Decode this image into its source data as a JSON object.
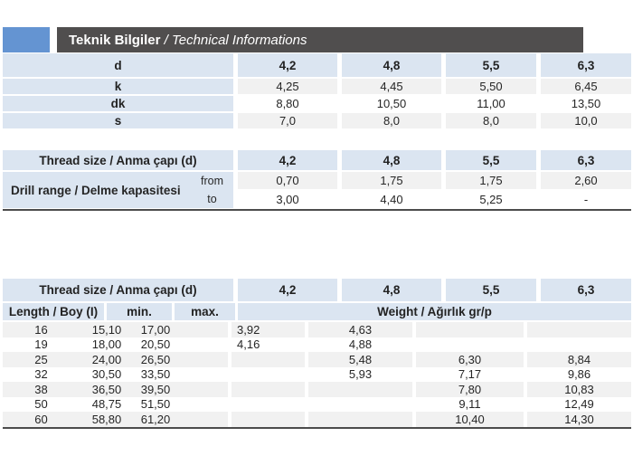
{
  "header": {
    "title_tr": "Teknik Bilgiler",
    "separator": " / ",
    "title_en": "Technical Informations"
  },
  "colors": {
    "accent_blue": "#6494d2",
    "header_bar_gray": "#504e4e",
    "cell_blue": "#dbe5f1",
    "stripe_gray": "#f1f1f1",
    "rule_dark": "#4c4c4c"
  },
  "dimensions_table": {
    "header_label": "d",
    "sizes": [
      "4,2",
      "4,8",
      "5,5",
      "6,3"
    ],
    "rows": [
      {
        "label": "k",
        "values": [
          "4,25",
          "4,45",
          "5,50",
          "6,45"
        ]
      },
      {
        "label": "dk",
        "values": [
          "8,80",
          "10,50",
          "11,00",
          "13,50"
        ]
      },
      {
        "label": "s",
        "values": [
          "7,0",
          "8,0",
          "8,0",
          "10,0"
        ]
      }
    ]
  },
  "drill_table": {
    "header_label": "Thread size / Anma çapı (d)",
    "sizes": [
      "4,2",
      "4,8",
      "5,5",
      "6,3"
    ],
    "row_label": "Drill range / Delme kapasitesi",
    "from_label": "from",
    "to_label": "to",
    "from_values": [
      "0,70",
      "1,75",
      "1,75",
      "2,60"
    ],
    "to_values": [
      "3,00",
      "4,40",
      "5,25",
      "-"
    ]
  },
  "weight_table": {
    "header_label": "Thread size / Anma çapı (d)",
    "sizes": [
      "4,2",
      "4,8",
      "5,5",
      "6,3"
    ],
    "length_label": "Length / Boy (I)",
    "min_label": "min.",
    "max_label": "max.",
    "weight_label": "Weight / Ağırlık gr/p",
    "rows": [
      {
        "length": "16",
        "min": "15,10",
        "max": "17,00",
        "weights": [
          "3,92",
          "4,63",
          "",
          ""
        ]
      },
      {
        "length": "19",
        "min": "18,00",
        "max": "20,50",
        "weights": [
          "4,16",
          "4,88",
          "",
          ""
        ]
      },
      {
        "length": "25",
        "min": "24,00",
        "max": "26,50",
        "weights": [
          "",
          "5,48",
          "6,30",
          "8,84"
        ]
      },
      {
        "length": "32",
        "min": "30,50",
        "max": "33,50",
        "weights": [
          "",
          "5,93",
          "7,17",
          "9,86"
        ]
      },
      {
        "length": "38",
        "min": "36,50",
        "max": "39,50",
        "weights": [
          "",
          "",
          "7,80",
          "10,83"
        ]
      },
      {
        "length": "50",
        "min": "48,75",
        "max": "51,50",
        "weights": [
          "",
          "",
          "9,11",
          "12,49"
        ]
      },
      {
        "length": "60",
        "min": "58,80",
        "max": "61,20",
        "weights": [
          "",
          "",
          "10,40",
          "14,30"
        ]
      }
    ]
  }
}
